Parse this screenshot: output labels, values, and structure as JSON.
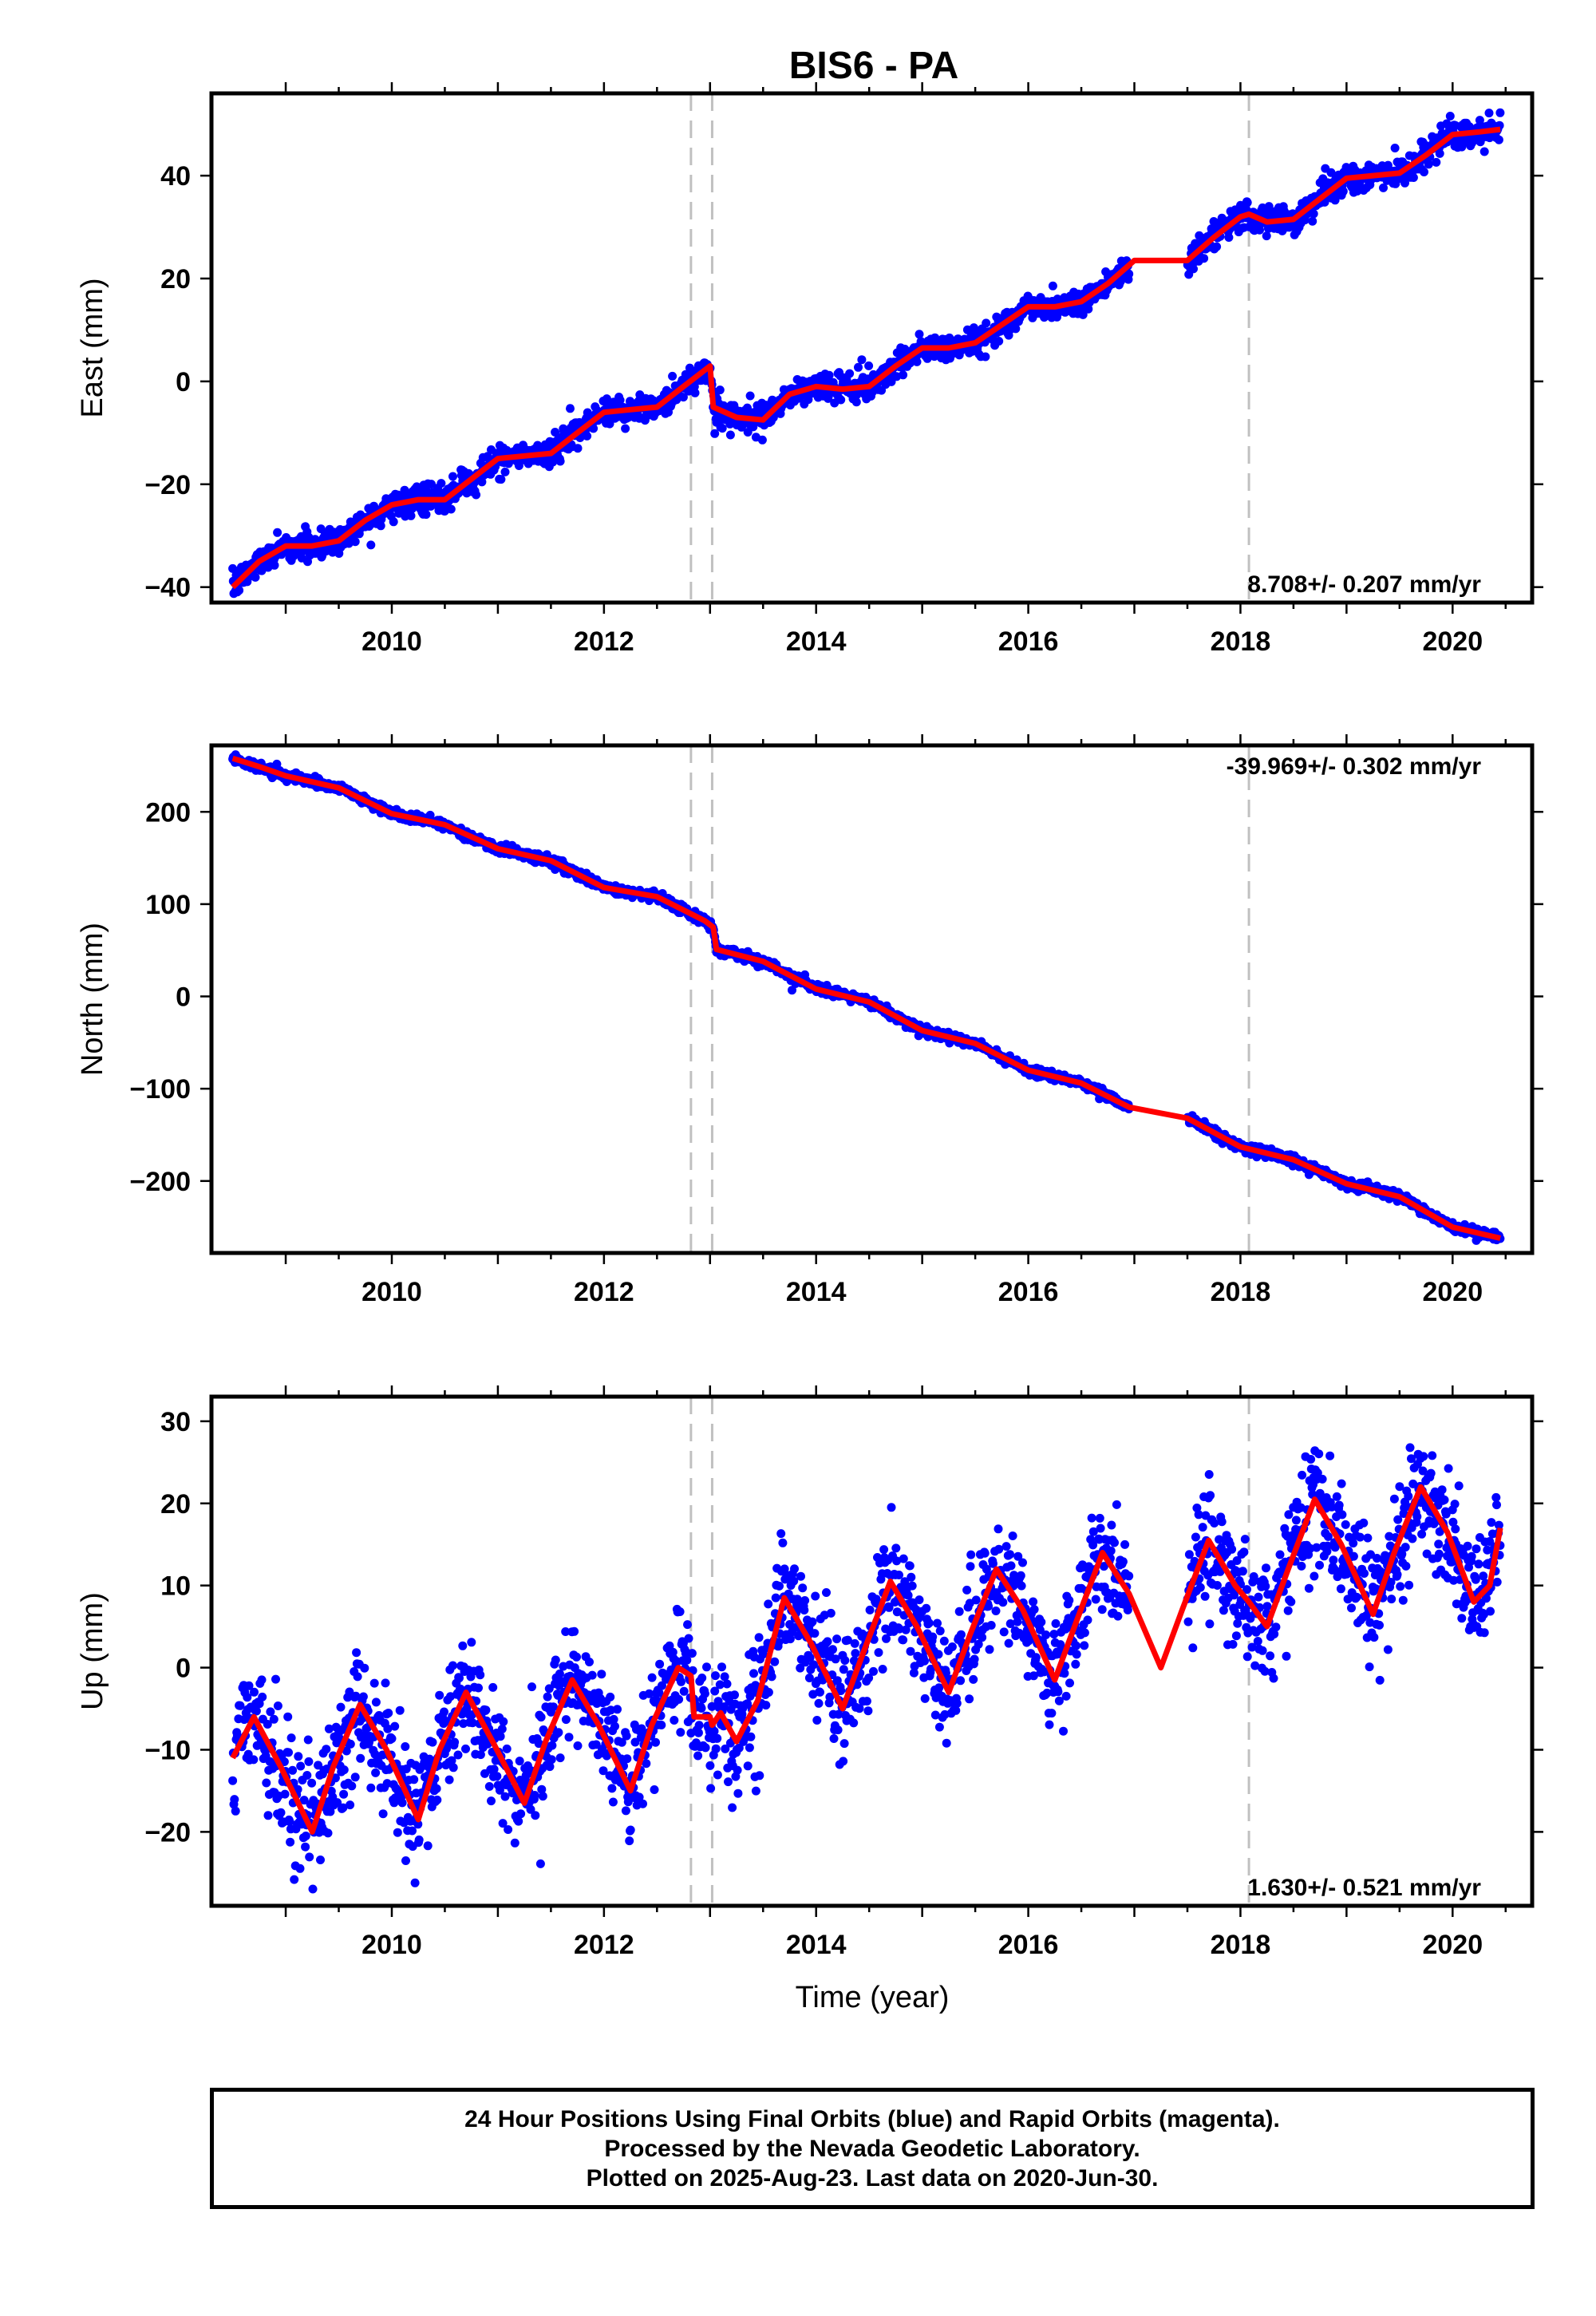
{
  "figure": {
    "title": "BIS6 - PA",
    "xlabel": "Time (year)"
  },
  "footer": {
    "line1": "24 Hour Positions Using Final Orbits (blue) and Rapid Orbits (magenta).",
    "line2": "Processed by the Nevada Geodetic Laboratory.",
    "line3": "Plotted on 2025-Aug-23. Last data on 2020-Jun-30."
  },
  "colors": {
    "observations": "#0000ff",
    "model": "#ff0000",
    "event_lines": "#c0c0c0"
  },
  "chart_data": [
    {
      "type": "scatter",
      "panel": "east",
      "ylabel": "East (mm)",
      "rate_label": "8.708+/- 0.207 mm/yr",
      "xlim": [
        2008.3,
        2020.75
      ],
      "ylim": [
        -43,
        56
      ],
      "x_ticks": [
        2010,
        2012,
        2014,
        2016,
        2018,
        2020
      ],
      "y_ticks": [
        -40,
        -20,
        0,
        20,
        40
      ],
      "event_lines_x": [
        2012.82,
        2013.02,
        2018.08
      ],
      "data_gap": [
        2016.95,
        2017.5
      ],
      "noise_mm": 1.3,
      "series": [
        {
          "name": "Final Orbits (blue)",
          "kind": "points"
        },
        {
          "kind": "model",
          "points": [
            [
              2008.5,
              -40
            ],
            [
              2008.75,
              -35
            ],
            [
              2009.0,
              -32
            ],
            [
              2009.25,
              -32
            ],
            [
              2009.5,
              -31
            ],
            [
              2009.75,
              -27
            ],
            [
              2010.0,
              -24
            ],
            [
              2010.25,
              -23
            ],
            [
              2010.5,
              -23
            ],
            [
              2010.75,
              -19
            ],
            [
              2011.0,
              -15
            ],
            [
              2011.25,
              -14.5
            ],
            [
              2011.5,
              -14
            ],
            [
              2011.75,
              -10
            ],
            [
              2012.0,
              -6
            ],
            [
              2012.25,
              -5.5
            ],
            [
              2012.5,
              -5
            ],
            [
              2012.75,
              -1
            ],
            [
              2013.0,
              3
            ],
            [
              2013.03,
              -5
            ],
            [
              2013.25,
              -7
            ],
            [
              2013.5,
              -7.5
            ],
            [
              2013.75,
              -2.5
            ],
            [
              2014.0,
              -1
            ],
            [
              2014.25,
              -1.5
            ],
            [
              2014.5,
              -1
            ],
            [
              2014.75,
              3
            ],
            [
              2015.0,
              6.5
            ],
            [
              2015.25,
              6.5
            ],
            [
              2015.5,
              7.5
            ],
            [
              2015.75,
              11
            ],
            [
              2016.0,
              14.5
            ],
            [
              2016.25,
              14.5
            ],
            [
              2016.5,
              15.5
            ],
            [
              2016.75,
              19
            ],
            [
              2017.0,
              23.5
            ],
            [
              2017.25,
              23.5
            ],
            [
              2017.5,
              23.5
            ],
            [
              2017.75,
              28
            ],
            [
              2018.0,
              32
            ],
            [
              2018.08,
              32.5
            ],
            [
              2018.25,
              31
            ],
            [
              2018.5,
              31.5
            ],
            [
              2018.75,
              35.5
            ],
            [
              2019.0,
              39.5
            ],
            [
              2019.25,
              40
            ],
            [
              2019.5,
              40.5
            ],
            [
              2019.75,
              44
            ],
            [
              2020.0,
              48
            ],
            [
              2020.25,
              48.5
            ],
            [
              2020.45,
              49
            ]
          ]
        }
      ]
    },
    {
      "type": "scatter",
      "panel": "north",
      "ylabel": "North (mm)",
      "rate_label": "-39.969+/- 0.302 mm/yr",
      "xlim": [
        2008.3,
        2020.75
      ],
      "ylim": [
        -278,
        272
      ],
      "x_ticks": [
        2010,
        2012,
        2014,
        2016,
        2018,
        2020
      ],
      "y_ticks": [
        -200,
        -100,
        0,
        100,
        200
      ],
      "event_lines_x": [
        2012.82,
        2013.02,
        2018.08
      ],
      "data_gap": [
        2016.95,
        2017.5
      ],
      "noise_mm": 2.5,
      "series": [
        {
          "name": "Final Orbits (blue)",
          "kind": "points"
        },
        {
          "kind": "model",
          "points": [
            [
              2008.5,
              258
            ],
            [
              2008.75,
              249
            ],
            [
              2009.0,
              239
            ],
            [
              2009.5,
              226
            ],
            [
              2010.0,
              198
            ],
            [
              2010.5,
              186
            ],
            [
              2011.0,
              160
            ],
            [
              2011.5,
              147
            ],
            [
              2012.0,
              118
            ],
            [
              2012.5,
              108
            ],
            [
              2012.95,
              82
            ],
            [
              2013.03,
              75
            ],
            [
              2013.06,
              51
            ],
            [
              2013.5,
              38
            ],
            [
              2014.0,
              8
            ],
            [
              2014.5,
              -6
            ],
            [
              2015.0,
              -37
            ],
            [
              2015.5,
              -51
            ],
            [
              2016.0,
              -80
            ],
            [
              2016.5,
              -94
            ],
            [
              2016.95,
              -120
            ],
            [
              2017.5,
              -132
            ],
            [
              2018.0,
              -163
            ],
            [
              2018.5,
              -177
            ],
            [
              2019.0,
              -203
            ],
            [
              2019.5,
              -217
            ],
            [
              2020.0,
              -250
            ],
            [
              2020.45,
              -262
            ]
          ]
        }
      ]
    },
    {
      "type": "scatter",
      "panel": "up",
      "ylabel": "Up (mm)",
      "rate_label": "1.630+/- 0.521 mm/yr",
      "xlim": [
        2008.3,
        2020.75
      ],
      "ylim": [
        -29,
        33
      ],
      "x_ticks": [
        2010,
        2012,
        2014,
        2016,
        2018,
        2020
      ],
      "y_ticks": [
        -20,
        -10,
        0,
        10,
        20,
        30
      ],
      "event_lines_x": [
        2012.82,
        2013.02,
        2018.08
      ],
      "data_gap": [
        2016.95,
        2017.5
      ],
      "noise_mm": 3.4,
      "series": [
        {
          "name": "Final Orbits (blue)",
          "kind": "points"
        },
        {
          "kind": "model",
          "points": [
            [
              2008.5,
              -11
            ],
            [
              2008.7,
              -6
            ],
            [
              2008.95,
              -12
            ],
            [
              2009.25,
              -20
            ],
            [
              2009.45,
              -12
            ],
            [
              2009.7,
              -4.5
            ],
            [
              2009.95,
              -10
            ],
            [
              2010.25,
              -18.5
            ],
            [
              2010.45,
              -10
            ],
            [
              2010.7,
              -3
            ],
            [
              2010.95,
              -9
            ],
            [
              2011.25,
              -16.5
            ],
            [
              2011.45,
              -9
            ],
            [
              2011.7,
              -1.5
            ],
            [
              2011.95,
              -7
            ],
            [
              2012.25,
              -15
            ],
            [
              2012.45,
              -7
            ],
            [
              2012.7,
              0
            ],
            [
              2012.82,
              -1
            ],
            [
              2012.85,
              -6
            ],
            [
              2013.0,
              -6
            ],
            [
              2013.02,
              -7
            ],
            [
              2013.1,
              -5.5
            ],
            [
              2013.25,
              -9
            ],
            [
              2013.45,
              -4
            ],
            [
              2013.7,
              8.5
            ],
            [
              2013.95,
              3
            ],
            [
              2014.25,
              -5
            ],
            [
              2014.45,
              2
            ],
            [
              2014.7,
              10.5
            ],
            [
              2014.95,
              5
            ],
            [
              2015.25,
              -3
            ],
            [
              2015.45,
              4
            ],
            [
              2015.7,
              12
            ],
            [
              2015.95,
              7
            ],
            [
              2016.25,
              -1.5
            ],
            [
              2016.45,
              5.5
            ],
            [
              2016.7,
              14
            ],
            [
              2016.95,
              9
            ],
            [
              2017.25,
              0
            ],
            [
              2017.45,
              7
            ],
            [
              2017.7,
              15.5
            ],
            [
              2017.95,
              10
            ],
            [
              2018.08,
              8
            ],
            [
              2018.25,
              5
            ],
            [
              2018.45,
              12
            ],
            [
              2018.7,
              20.5
            ],
            [
              2018.95,
              15
            ],
            [
              2019.25,
              6.5
            ],
            [
              2019.45,
              14
            ],
            [
              2019.7,
              22
            ],
            [
              2019.95,
              16.5
            ],
            [
              2020.2,
              8
            ],
            [
              2020.35,
              10
            ],
            [
              2020.45,
              17
            ]
          ]
        }
      ]
    }
  ]
}
